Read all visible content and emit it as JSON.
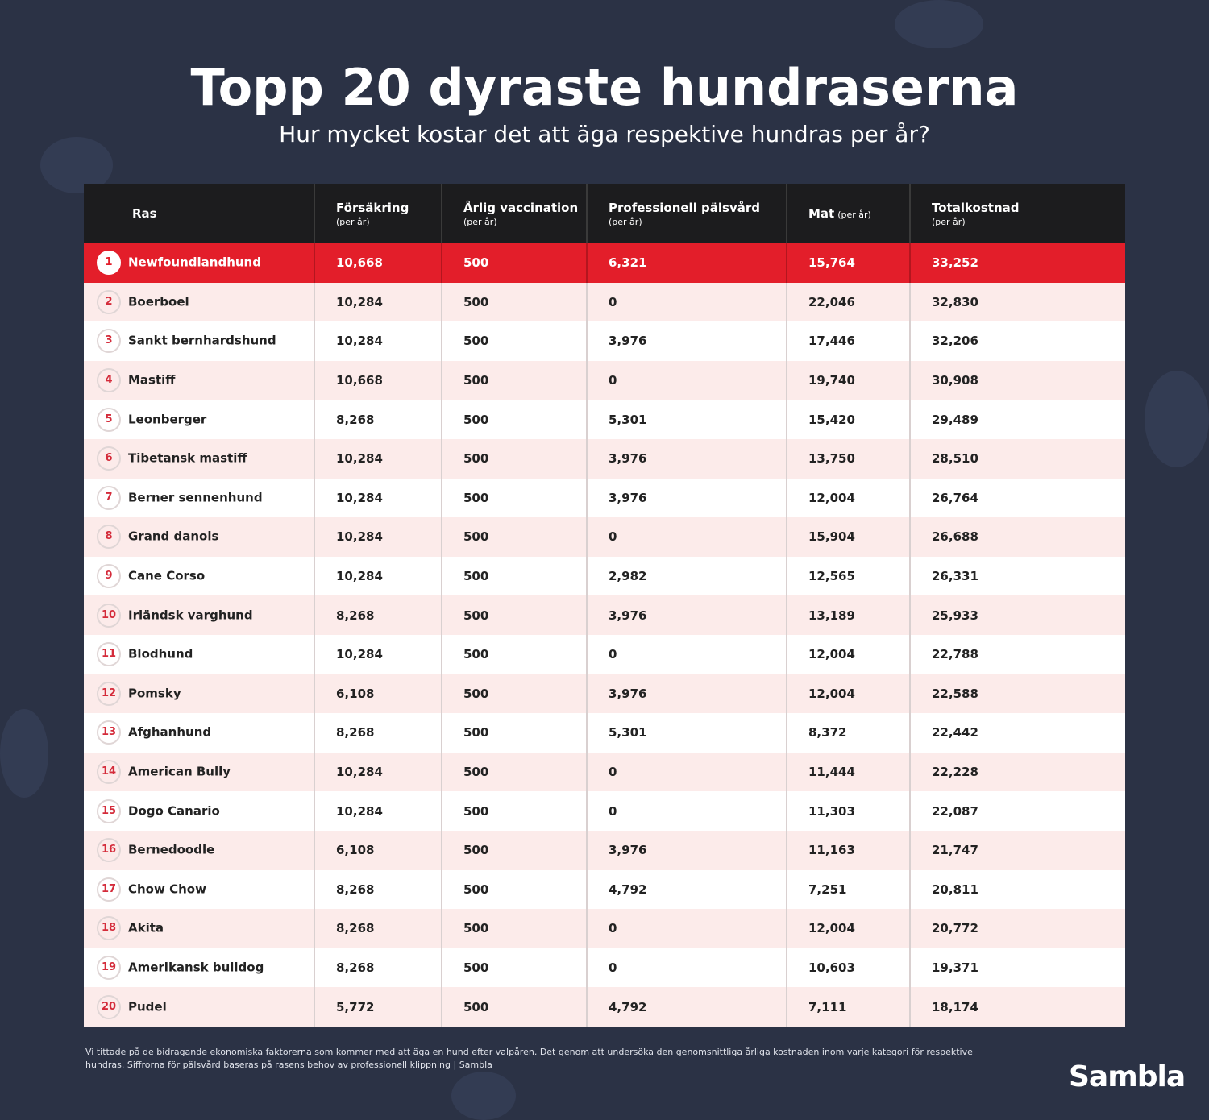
{
  "title": "Topp 20 dyraste hundraserna",
  "subtitle": "Hur mycket kostar det att äga respektive hundras per år?",
  "colors": {
    "background": "#2b3245",
    "header": "#1c1c1e",
    "highlight": "#e31e2a",
    "row_alt": "#fcebea"
  },
  "chart_data": {
    "type": "table",
    "columns": [
      {
        "label": "Ras",
        "unit": ""
      },
      {
        "label": "Försäkring",
        "unit": "(per år)"
      },
      {
        "label": "Årlig vaccination",
        "unit": "(per år)"
      },
      {
        "label": "Professionell pälsvård",
        "unit": "(per år)"
      },
      {
        "label": "Mat",
        "unit": "(per år)"
      },
      {
        "label": "Totalkostnad",
        "unit": "(per år)"
      }
    ],
    "rows": [
      {
        "rank": "1",
        "name": "Newfoundlandhund",
        "cells": [
          "10,668",
          "500",
          "6,321",
          "15,764",
          "33,252"
        ]
      },
      {
        "rank": "2",
        "name": "Boerboel",
        "cells": [
          "10,284",
          "500",
          "0",
          "22,046",
          "32,830"
        ]
      },
      {
        "rank": "3",
        "name": "Sankt bernhardshund",
        "cells": [
          "10,284",
          "500",
          "3,976",
          "17,446",
          "32,206"
        ]
      },
      {
        "rank": "4",
        "name": "Mastiff",
        "cells": [
          "10,668",
          "500",
          "0",
          "19,740",
          "30,908"
        ]
      },
      {
        "rank": "5",
        "name": "Leonberger",
        "cells": [
          "8,268",
          "500",
          "5,301",
          "15,420",
          "29,489"
        ]
      },
      {
        "rank": "6",
        "name": "Tibetansk mastiff",
        "cells": [
          "10,284",
          "500",
          "3,976",
          "13,750",
          "28,510"
        ]
      },
      {
        "rank": "7",
        "name": "Berner sennenhund",
        "cells": [
          "10,284",
          "500",
          "3,976",
          "12,004",
          "26,764"
        ]
      },
      {
        "rank": "8",
        "name": "Grand danois",
        "cells": [
          "10,284",
          "500",
          "0",
          "15,904",
          "26,688"
        ]
      },
      {
        "rank": "9",
        "name": "Cane Corso",
        "cells": [
          "10,284",
          "500",
          "2,982",
          "12,565",
          "26,331"
        ]
      },
      {
        "rank": "10",
        "name": "Irländsk varghund",
        "cells": [
          "8,268",
          "500",
          "3,976",
          "13,189",
          "25,933"
        ]
      },
      {
        "rank": "11",
        "name": "Blodhund",
        "cells": [
          "10,284",
          "500",
          "0",
          "12,004",
          "22,788"
        ]
      },
      {
        "rank": "12",
        "name": "Pomsky",
        "cells": [
          "6,108",
          "500",
          "3,976",
          "12,004",
          "22,588"
        ]
      },
      {
        "rank": "13",
        "name": "Afghanhund",
        "cells": [
          "8,268",
          "500",
          "5,301",
          "8,372",
          "22,442"
        ]
      },
      {
        "rank": "14",
        "name": "American Bully",
        "cells": [
          "10,284",
          "500",
          "0",
          "11,444",
          "22,228"
        ]
      },
      {
        "rank": "15",
        "name": "Dogo Canario",
        "cells": [
          "10,284",
          "500",
          "0",
          "11,303",
          "22,087"
        ]
      },
      {
        "rank": "16",
        "name": "Bernedoodle",
        "cells": [
          "6,108",
          "500",
          "3,976",
          "11,163",
          "21,747"
        ]
      },
      {
        "rank": "17",
        "name": "Chow Chow",
        "cells": [
          "8,268",
          "500",
          "4,792",
          "7,251",
          "20,811"
        ]
      },
      {
        "rank": "18",
        "name": "Akita",
        "cells": [
          "8,268",
          "500",
          "0",
          "12,004",
          "20,772"
        ]
      },
      {
        "rank": "19",
        "name": "Amerikansk bulldog",
        "cells": [
          "8,268",
          "500",
          "0",
          "10,603",
          "19,371"
        ]
      },
      {
        "rank": "20",
        "name": "Pudel",
        "cells": [
          "5,772",
          "500",
          "4,792",
          "7,111",
          "18,174"
        ]
      }
    ]
  },
  "footnote": "Vi tittade på de bidragande ekonomiska faktorerna som kommer med att äga en hund efter valpåren. Det genom att undersöka den genomsnittliga årliga kostnaden inom varje kategori för respektive hundras. Siffrorna för pälsvård baseras på rasens behov av professionell klippning | Sambla",
  "logo": "Sambla"
}
